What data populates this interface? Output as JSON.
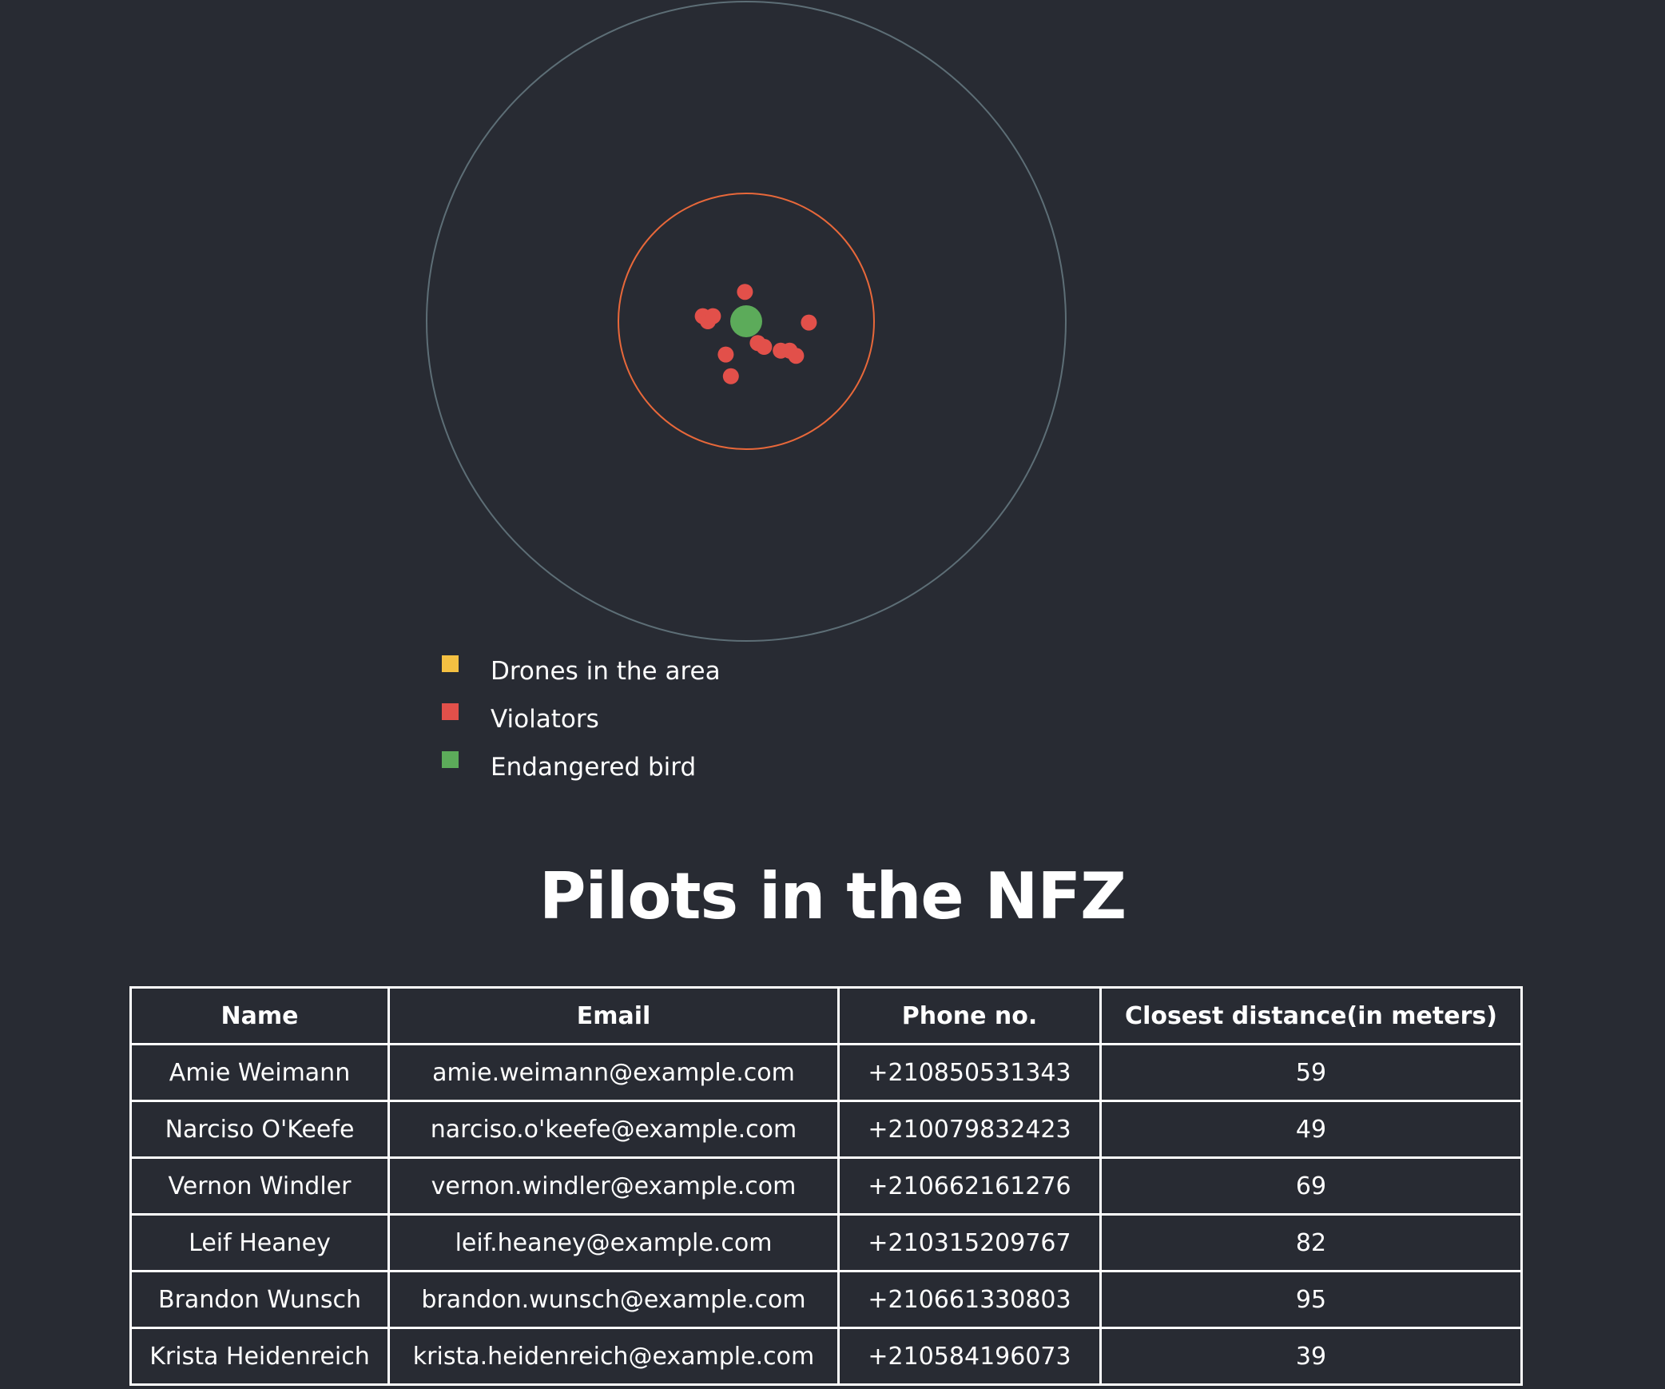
{
  "chart_data": {
    "type": "scatter",
    "title": "",
    "zones": [
      {
        "name": "outer-area",
        "radius": 250,
        "color": "#5d6e76"
      },
      {
        "name": "no-fly-zone",
        "radius": 100,
        "color": "#e8683a"
      }
    ],
    "bird": {
      "x": 0,
      "y": 0,
      "color": "#5cab5a"
    },
    "series": [
      {
        "name": "Violators",
        "color": "#e2504a",
        "points": [
          {
            "x": -1,
            "y": 23
          },
          {
            "x": -34,
            "y": 4
          },
          {
            "x": -30,
            "y": 0
          },
          {
            "x": -26,
            "y": 4
          },
          {
            "x": 49,
            "y": -1
          },
          {
            "x": 9,
            "y": -17
          },
          {
            "x": 14,
            "y": -20
          },
          {
            "x": 27,
            "y": -23
          },
          {
            "x": 34,
            "y": -23
          },
          {
            "x": 39,
            "y": -27
          },
          {
            "x": -16,
            "y": -26
          },
          {
            "x": -12,
            "y": -43
          }
        ]
      }
    ],
    "xlim": [
      -250,
      250
    ],
    "ylim": [
      -250,
      250
    ],
    "grid": false
  },
  "legend": {
    "items": [
      {
        "label": "Drones in the area",
        "color": "#f4c042"
      },
      {
        "label": "Violators",
        "color": "#e2504a"
      },
      {
        "label": "Endangered bird",
        "color": "#5cab5a"
      }
    ]
  },
  "title": "Pilots in the NFZ",
  "table": {
    "headers": [
      "Name",
      "Email",
      "Phone no.",
      "Closest distance(in meters)"
    ],
    "rows": [
      [
        "Amie Weimann",
        "amie.weimann@example.com",
        "+210850531343",
        "59"
      ],
      [
        "Narciso O'Keefe",
        "narciso.o'keefe@example.com",
        "+210079832423",
        "49"
      ],
      [
        "Vernon Windler",
        "vernon.windler@example.com",
        "+210662161276",
        "69"
      ],
      [
        "Leif Heaney",
        "leif.heaney@example.com",
        "+210315209767",
        "82"
      ],
      [
        "Brandon Wunsch",
        "brandon.wunsch@example.com",
        "+210661330803",
        "95"
      ],
      [
        "Krista Heidenreich",
        "krista.heidenreich@example.com",
        "+210584196073",
        "39"
      ]
    ]
  }
}
